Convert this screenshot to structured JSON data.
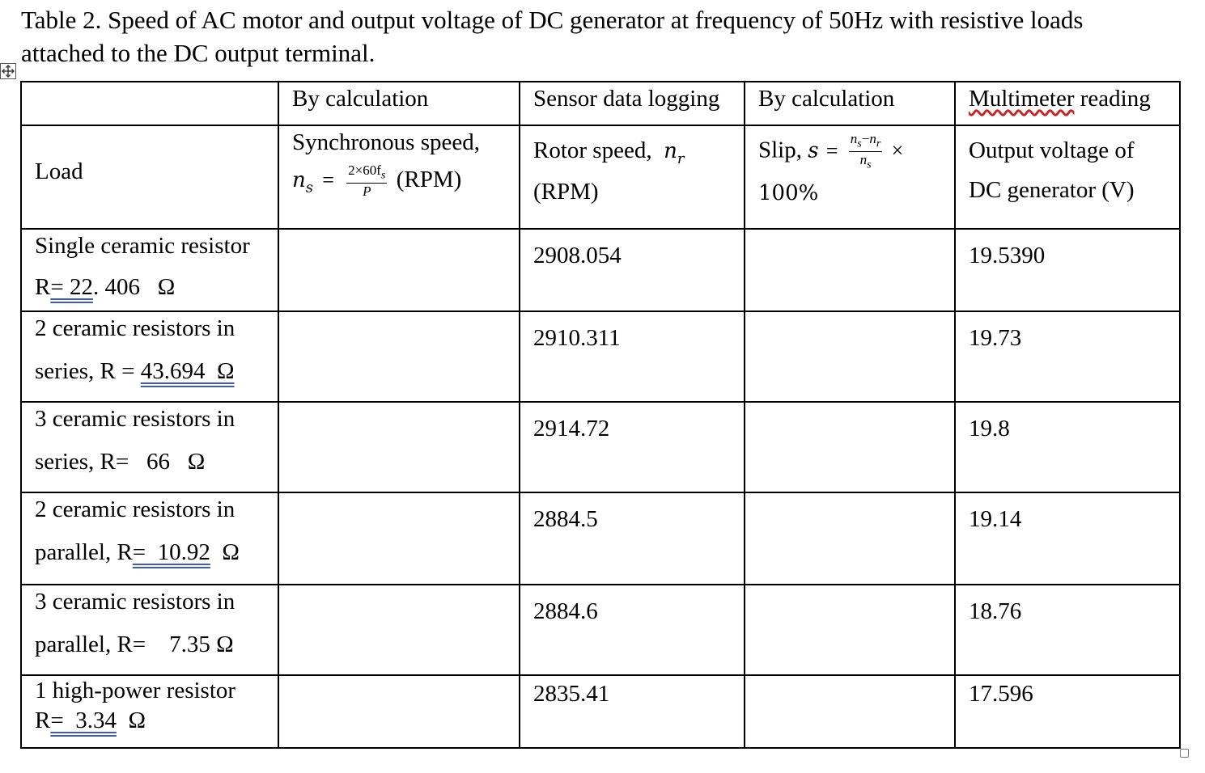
{
  "caption": {
    "line1": "Table 2. Speed of AC motor and output voltage of DC generator at frequency of 50Hz with resistive loads",
    "line2": "attached to the DC output terminal."
  },
  "header": {
    "col2_method": "By calculation",
    "col3_method": "Sensor data logging",
    "col4_method": "By calculation",
    "col5_method_word1": "Multimeter",
    "col5_method_word2": " reading",
    "col1_label": "Load",
    "col2_label": "Synchronous speed,",
    "col2_formula_lhs": "n",
    "col2_formula_lhs_sub": "s",
    "col2_formula_eq": "=",
    "col2_formula_num": "2×60f",
    "col2_formula_num_sub": "s",
    "col2_formula_den": "P",
    "col2_unit": "(RPM)",
    "col3_label": "Rotor speed,",
    "col3_symbol": "n",
    "col3_symbol_sub": "r",
    "col3_unit": "(RPM)",
    "col4_label": "Slip, ",
    "col4_symbol": "s",
    "col4_eq": "=",
    "col4_num_a": "n",
    "col4_num_a_sub": "s",
    "col4_num_op": "−",
    "col4_num_b": "n",
    "col4_num_b_sub": "r",
    "col4_den": "n",
    "col4_den_sub": "s",
    "col4_times": "×",
    "col4_pct": "100%",
    "col5_label_line1": "Output voltage of",
    "col5_label_line2": "DC generator (V)"
  },
  "rows": [
    {
      "load_line1": "Single ceramic resistor",
      "load_line2_prefix": "R",
      "load_line2_value": "= 22",
      "load_line2_suffix": ". 406   Ω",
      "sync_speed": "",
      "rotor_speed": "2908.054",
      "slip": "",
      "voltage": "19.5390"
    },
    {
      "load_line1": "2 ceramic resistors in",
      "load_line2_prefix": "series, R = ",
      "load_line2_value": "43.694  Ω",
      "load_line2_suffix": "",
      "sync_speed": "",
      "rotor_speed": "2910.311",
      "slip": "",
      "voltage": "19.73"
    },
    {
      "load_line1": "3 ceramic resistors in",
      "load_line2_prefix": "series, R=   66   Ω",
      "load_line2_value": "",
      "load_line2_suffix": "",
      "sync_speed": "",
      "rotor_speed": "2914.72",
      "slip": "",
      "voltage": "19.8"
    },
    {
      "load_line1": "2 ceramic resistors in",
      "load_line2_prefix": "parallel, R",
      "load_line2_value": "=  10.92",
      "load_line2_suffix": "  Ω",
      "sync_speed": "",
      "rotor_speed": "2884.5",
      "slip": "",
      "voltage": "19.14"
    },
    {
      "load_line1": "3 ceramic resistors in",
      "load_line2_prefix": "parallel, R=    7.35 Ω",
      "load_line2_value": "",
      "load_line2_suffix": "",
      "sync_speed": "",
      "rotor_speed": "2884.6",
      "slip": "",
      "voltage": "18.76"
    },
    {
      "load_line1": "1 high-power resistor",
      "load_line2_prefix": "R",
      "load_line2_value": "=  3.34",
      "load_line2_suffix": "  Ω",
      "sync_speed": "",
      "rotor_speed": "2835.41",
      "slip": "",
      "voltage": "17.596"
    }
  ],
  "colors": {
    "double_underline": "#3a5ccc",
    "spellcheck_underline": "#cc2222"
  },
  "icons": {
    "move_handle": "move-cross-icon",
    "resize_handle": "resize-square-icon"
  }
}
